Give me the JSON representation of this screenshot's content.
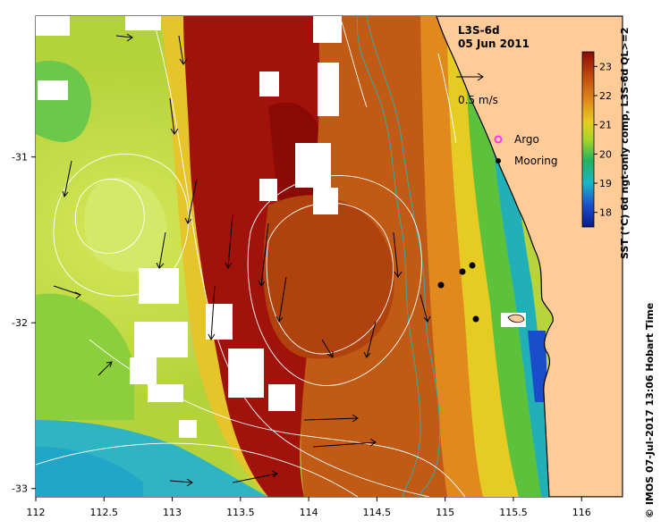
{
  "map": {
    "product": "L3S-6d",
    "date": "05 Jun 2011",
    "x_ticks": [
      "112",
      "112.5",
      "113",
      "113.5",
      "114",
      "114.5",
      "115",
      "115.5",
      "116"
    ],
    "y_ticks": [
      "-31",
      "-32",
      "-33"
    ],
    "scale_arrow_label": "0.5 m/s",
    "legend": {
      "argo": "Argo",
      "mooring": "Mooring",
      "argo_color": "#ff33ff",
      "mooring_color": "#000000"
    },
    "colorbar": {
      "label": "SST (°C) 6d ngt-only comp, L3S-6d QL>=2",
      "ticks": [
        "23",
        "22",
        "21",
        "20",
        "19",
        "18"
      ],
      "min": 17.5,
      "max": 23.5
    },
    "credit": "© IMOS 07-Jul-2017 13:06 Hobart Time",
    "colors": {
      "land": "#ffcc99",
      "coast": "#000000",
      "isobath": "#33aaaa",
      "contour": "#ffffff",
      "current_arrows": "#000000"
    }
  }
}
